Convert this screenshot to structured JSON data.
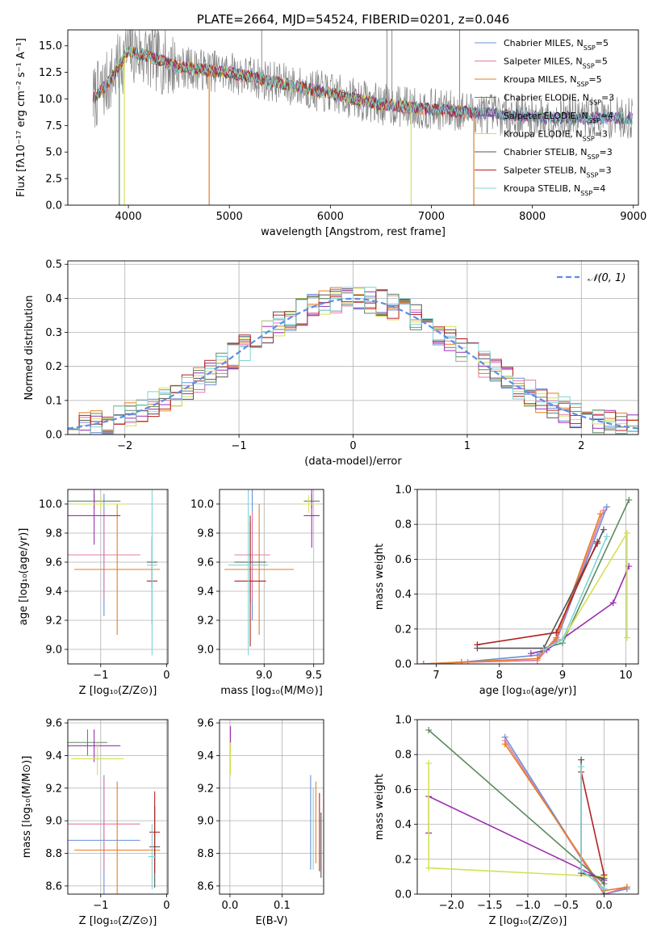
{
  "colors": {
    "chabrier_miles": "#6b8fd9",
    "salpeter_miles": "#e17ba8",
    "kroupa_miles": "#e67e22",
    "chabrier_elodie": "#5e8a5e",
    "salpeter_elodie": "#9b2fb0",
    "kroupa_elodie": "#d4e157",
    "chabrier_stelib": "#555555",
    "salpeter_stelib": "#b22222",
    "kroupa_stelib": "#7fd4d4",
    "data": "#808080",
    "normal": "#5b8ee6",
    "grid": "#b0b0b0"
  },
  "chart_data": [
    {
      "id": "spectrum",
      "type": "line",
      "title": "PLATE=2664, MJD=54524, FIBERID=0201, z=0.046",
      "xlabel": "wavelength [Angstrom, rest frame]",
      "ylabel": "Flux [fλ10⁻¹⁷ erg cm⁻² s⁻¹ A⁻¹]",
      "xlim": [
        3400,
        9050
      ],
      "ylim": [
        0,
        16.5
      ],
      "xticks": [
        "4000",
        "5000",
        "6000",
        "7000",
        "8000",
        "9000"
      ],
      "yticks": [
        "0.0",
        "2.5",
        "5.0",
        "7.5",
        "10.0",
        "12.5",
        "15.0"
      ],
      "grid": false,
      "legend": "top-right",
      "legend_entries": [
        {
          "base": "Chabrier MILES, N",
          "sub": "SSP",
          "tail": "=5"
        },
        {
          "base": "Salpeter MILES, N",
          "sub": "SSP",
          "tail": "=5"
        },
        {
          "base": "Kroupa MILES, N",
          "sub": "SSP",
          "tail": "=5"
        },
        {
          "base": "Chabrier ELODIE, N",
          "sub": "SSP",
          "tail": "=3"
        },
        {
          "base": "Salpeter ELODIE, N",
          "sub": "SSP",
          "tail": "=4"
        },
        {
          "base": "Kroupa ELODIE, N",
          "sub": "SSP",
          "tail": "=3"
        },
        {
          "base": "Chabrier STELIB, N",
          "sub": "SSP",
          "tail": "=3"
        },
        {
          "base": "Salpeter STELIB, N",
          "sub": "SSP",
          "tail": "=3"
        },
        {
          "base": "Kroupa STELIB, N",
          "sub": "SSP",
          "tail": "=4"
        }
      ],
      "model_ranges": [
        [
          3650,
          8990
        ],
        [
          3650,
          8990
        ],
        [
          3650,
          7420
        ],
        [
          3650,
          8990
        ],
        [
          3650,
          8990
        ],
        [
          3650,
          6800
        ],
        [
          3650,
          8990
        ],
        [
          3650,
          7400
        ],
        [
          3650,
          8990
        ]
      ],
      "continuum": {
        "x": [
          3650,
          3800,
          4000,
          4200,
          4500,
          5000,
          5500,
          6000,
          6500,
          7000,
          7500,
          8000,
          8500,
          9000
        ],
        "y": [
          10.0,
          11.5,
          14.5,
          14.0,
          13.0,
          12.5,
          11.5,
          10.5,
          9.5,
          9.0,
          8.7,
          8.3,
          8.2,
          8.2
        ]
      }
    },
    {
      "id": "residuals",
      "type": "bar",
      "xlabel": "(data-model)/error",
      "ylabel": "Normed distribution",
      "xlim": [
        -2.5,
        2.5
      ],
      "ylim": [
        0,
        0.51
      ],
      "xticks": [
        "−2",
        "−1",
        "0",
        "1",
        "2"
      ],
      "yticks": [
        "0.0",
        "0.1",
        "0.2",
        "0.3",
        "0.4",
        "0.5"
      ],
      "grid": true,
      "legend": "top-right",
      "normal_label": "𝒩(0, 1)",
      "bin_width": 0.1
    },
    {
      "id": "age-z",
      "type": "scatter",
      "xlabel": "Z [log₁₀(Z/Z⊙)]",
      "ylabel": "age  [log₁₀(age/yr)]",
      "xlim": [
        -1.5,
        0.02
      ],
      "ylim": [
        8.9,
        10.1
      ],
      "xticks": [
        "−1",
        "0"
      ],
      "yticks": [
        "9.0",
        "9.2",
        "9.4",
        "9.6",
        "9.8",
        "10.0"
      ],
      "grid": true,
      "points": [
        {
          "series": "chabrier_miles",
          "x": -0.95,
          "y": 9.65,
          "xerr": 0.55,
          "yerr": 0.42
        },
        {
          "series": "salpeter_miles",
          "x": -0.95,
          "y": 9.65,
          "xerr": 0.55,
          "yerr": 0.3
        },
        {
          "series": "kroupa_miles",
          "x": -0.75,
          "y": 9.55,
          "xerr": 0.65,
          "yerr": 0.45
        },
        {
          "series": "chabrier_elodie",
          "x": -1.1,
          "y": 10.02,
          "xerr": 0.4,
          "yerr": 0.05
        },
        {
          "series": "salpeter_elodie",
          "x": -1.1,
          "y": 9.92,
          "xerr": 0.4,
          "yerr": 0.2
        },
        {
          "series": "kroupa_elodie",
          "x": -1.0,
          "y": 10.0,
          "xerr": 0.4,
          "yerr": 0.04
        },
        {
          "series": "chabrier_stelib",
          "x": -0.22,
          "y": 9.6,
          "xerr": 0.08,
          "yerr": 0.18
        },
        {
          "series": "salpeter_stelib",
          "x": -0.22,
          "y": 9.47,
          "xerr": 0.08,
          "yerr": 0.3
        },
        {
          "series": "kroupa_stelib",
          "x": -0.22,
          "y": 9.58,
          "xerr": 0.08,
          "yerr": 0.62
        }
      ]
    },
    {
      "id": "age-mass",
      "type": "scatter",
      "xlabel": "mass [log₁₀(M/M⊙)]",
      "xlim": [
        8.55,
        9.6
      ],
      "ylim": [
        8.9,
        10.1
      ],
      "xticks": [
        "9.0",
        "9.5"
      ],
      "yticks": [
        "9.0",
        "9.2",
        "9.4",
        "9.6",
        "9.8",
        "10.0"
      ],
      "grid": true,
      "points": [
        {
          "series": "chabrier_miles",
          "x": 8.88,
          "y": 9.65,
          "xerr": 0.18,
          "yerr": 0.45
        },
        {
          "series": "salpeter_miles",
          "x": 8.88,
          "y": 9.65,
          "xerr": 0.18,
          "yerr": 0.3
        },
        {
          "series": "kroupa_miles",
          "x": 8.95,
          "y": 9.55,
          "xerr": 0.35,
          "yerr": 0.45
        },
        {
          "series": "chabrier_elodie",
          "x": 9.48,
          "y": 10.02,
          "xerr": 0.08,
          "yerr": 0.05
        },
        {
          "series": "salpeter_elodie",
          "x": 9.48,
          "y": 9.92,
          "xerr": 0.08,
          "yerr": 0.22
        },
        {
          "series": "kroupa_elodie",
          "x": 9.45,
          "y": 10.0,
          "xerr": 0.08,
          "yerr": 0.06
        },
        {
          "series": "chabrier_stelib",
          "x": 8.86,
          "y": 9.6,
          "xerr": 0.16,
          "yerr": 0.28
        },
        {
          "series": "salpeter_stelib",
          "x": 8.86,
          "y": 9.47,
          "xerr": 0.16,
          "yerr": 0.45
        },
        {
          "series": "kroupa_stelib",
          "x": 8.84,
          "y": 9.58,
          "xerr": 0.2,
          "yerr": 0.62
        }
      ]
    },
    {
      "id": "weight-age",
      "type": "line",
      "xlabel": "age  [log₁₀(age/yr)]",
      "ylabel": "mass weight",
      "xlim": [
        6.7,
        10.2
      ],
      "ylim": [
        0,
        1.0
      ],
      "xticks": [
        "7",
        "8",
        "9",
        "10"
      ],
      "yticks": [
        "0.0",
        "0.2",
        "0.4",
        "0.6",
        "0.8",
        "1.0"
      ],
      "grid": true,
      "series": [
        {
          "key": "chabrier_miles",
          "x": [
            6.8,
            7.4,
            8.6,
            8.9,
            9.7
          ],
          "y": [
            0.0,
            0.01,
            0.05,
            0.13,
            0.9
          ]
        },
        {
          "key": "salpeter_miles",
          "x": [
            6.8,
            7.5,
            8.6,
            8.9,
            9.65
          ],
          "y": [
            0.0,
            0.01,
            0.02,
            0.14,
            0.88
          ]
        },
        {
          "key": "kroupa_miles",
          "x": [
            6.8,
            7.4,
            8.6,
            8.9,
            9.6
          ],
          "y": [
            0.0,
            0.01,
            0.03,
            0.15,
            0.86
          ]
        },
        {
          "key": "chabrier_elodie",
          "x": [
            8.7,
            9.0,
            10.05
          ],
          "y": [
            0.09,
            0.12,
            0.94
          ]
        },
        {
          "key": "salpeter_elodie",
          "x": [
            8.5,
            8.75,
            9.8,
            10.05
          ],
          "y": [
            0.06,
            0.08,
            0.35,
            0.56
          ]
        },
        {
          "key": "kroupa_elodie",
          "x": [
            8.7,
            9.0,
            10.02,
            10.02
          ],
          "y": [
            0.08,
            0.14,
            0.75,
            0.15
          ]
        },
        {
          "key": "chabrier_stelib",
          "x": [
            7.65,
            8.7,
            9.55,
            9.65
          ],
          "y": [
            0.09,
            0.09,
            0.69,
            0.77
          ]
        },
        {
          "key": "salpeter_stelib",
          "x": [
            7.65,
            8.9,
            9.55
          ],
          "y": [
            0.11,
            0.18,
            0.7
          ]
        },
        {
          "key": "kroupa_stelib",
          "x": [
            8.7,
            9.0,
            9.7
          ],
          "y": [
            0.08,
            0.14,
            0.73
          ]
        }
      ]
    },
    {
      "id": "mass-z",
      "type": "scatter",
      "xlabel": "Z [log₁₀(Z/Z⊙)]",
      "ylabel": "mass [log₁₀(M/M⊙)]",
      "xlim": [
        -1.5,
        0.02
      ],
      "ylim": [
        8.55,
        9.62
      ],
      "xticks": [
        "−1",
        "0"
      ],
      "yticks": [
        "8.6",
        "8.8",
        "9.0",
        "9.2",
        "9.4",
        "9.6"
      ],
      "grid": true,
      "points": [
        {
          "series": "chabrier_miles",
          "x": -0.95,
          "y": 8.88,
          "xerr": 0.55,
          "yerr": 0.4
        },
        {
          "series": "salpeter_miles",
          "x": -0.95,
          "y": 8.98,
          "xerr": 0.55,
          "yerr": 0.28
        },
        {
          "series": "kroupa_miles",
          "x": -0.75,
          "y": 8.82,
          "xerr": 0.65,
          "yerr": 0.42
        },
        {
          "series": "chabrier_elodie",
          "x": -1.2,
          "y": 9.48,
          "xerr": 0.3,
          "yerr": 0.08
        },
        {
          "series": "salpeter_elodie",
          "x": -1.1,
          "y": 9.46,
          "xerr": 0.4,
          "yerr": 0.1
        },
        {
          "series": "kroupa_elodie",
          "x": -1.05,
          "y": 9.38,
          "xerr": 0.4,
          "yerr": 0.1
        },
        {
          "series": "chabrier_stelib",
          "x": -0.18,
          "y": 8.84,
          "xerr": 0.08,
          "yerr": 0.25
        },
        {
          "series": "salpeter_stelib",
          "x": -0.18,
          "y": 8.93,
          "xerr": 0.08,
          "yerr": 0.25
        },
        {
          "series": "kroupa_stelib",
          "x": -0.22,
          "y": 8.78,
          "xerr": 0.06,
          "yerr": 0.2
        }
      ]
    },
    {
      "id": "mass-ebv",
      "type": "scatter",
      "xlabel": "E(B-V)",
      "xlim": [
        -0.02,
        0.18
      ],
      "ylim": [
        8.55,
        9.62
      ],
      "xticks": [
        "0.0",
        "0.1"
      ],
      "yticks": [
        "8.6",
        "8.8",
        "9.0",
        "9.2",
        "9.4",
        "9.6"
      ],
      "grid": true,
      "points": [
        {
          "series": "chabrier_miles",
          "x": 0.155,
          "y": 8.99,
          "xerr": 0.0,
          "yerr": 0.29
        },
        {
          "series": "kroupa_miles",
          "x": 0.165,
          "y": 8.99,
          "xerr": 0.0,
          "yerr": 0.25
        },
        {
          "series": "kroupa_stelib",
          "x": 0.16,
          "y": 8.95,
          "xerr": 0.0,
          "yerr": 0.25
        },
        {
          "series": "salpeter_stelib",
          "x": 0.172,
          "y": 8.93,
          "xerr": 0.0,
          "yerr": 0.24
        },
        {
          "series": "chabrier_stelib",
          "x": 0.175,
          "y": 8.85,
          "xerr": 0.0,
          "yerr": 0.2
        },
        {
          "series": "salpeter_elodie",
          "x": 0.001,
          "y": 9.5,
          "xerr": 0.0,
          "yerr": 0.08
        },
        {
          "series": "kroupa_elodie",
          "x": 0.001,
          "y": 9.38,
          "xerr": 0.0,
          "yerr": 0.1
        }
      ]
    },
    {
      "id": "weight-z",
      "type": "line",
      "xlabel": "Z [log₁₀(Z/Z⊙)]",
      "ylabel": "mass weight",
      "xlim": [
        -2.45,
        0.45
      ],
      "ylim": [
        0,
        1.0
      ],
      "xticks": [
        "−2.0",
        "−1.5",
        "−1.0",
        "−0.5",
        "0.0"
      ],
      "yticks": [
        "0.0",
        "0.2",
        "0.4",
        "0.6",
        "0.8",
        "1.0"
      ],
      "grid": true,
      "series": [
        {
          "key": "chabrier_miles",
          "x": [
            -1.3,
            0.0,
            0.3
          ],
          "y": [
            0.9,
            0.0,
            0.03
          ]
        },
        {
          "key": "salpeter_miles",
          "x": [
            -1.3,
            0.0,
            0.3
          ],
          "y": [
            0.88,
            0.0,
            0.04
          ]
        },
        {
          "key": "kroupa_miles",
          "x": [
            -1.3,
            0.0,
            0.3
          ],
          "y": [
            0.86,
            0.02,
            0.04
          ]
        },
        {
          "key": "chabrier_elodie",
          "x": [
            -2.3,
            0.0
          ],
          "y": [
            0.94,
            0.06
          ]
        },
        {
          "key": "salpeter_elodie",
          "x": [
            -2.3,
            -2.3,
            0.0
          ],
          "y": [
            0.35,
            0.56,
            0.08
          ]
        },
        {
          "key": "kroupa_elodie",
          "x": [
            -2.3,
            -2.3,
            0.0
          ],
          "y": [
            0.75,
            0.15,
            0.1
          ]
        },
        {
          "key": "chabrier_stelib",
          "x": [
            -0.3,
            -0.3,
            0.0,
            0.0
          ],
          "y": [
            0.77,
            0.12,
            0.09,
            0.0
          ]
        },
        {
          "key": "salpeter_stelib",
          "x": [
            -0.3,
            0.0
          ],
          "y": [
            0.7,
            0.11
          ]
        },
        {
          "key": "kroupa_stelib",
          "x": [
            -0.3,
            -0.3,
            0.0
          ],
          "y": [
            0.73,
            0.14,
            0.03
          ]
        }
      ]
    }
  ]
}
